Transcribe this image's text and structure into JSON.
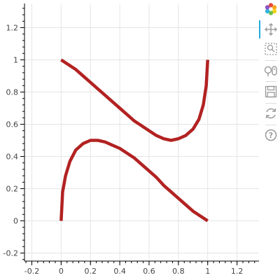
{
  "toolbar": {
    "items": [
      {
        "icon": "bokeh-logo-icon",
        "active": false
      },
      {
        "icon": "pan-icon",
        "active": true
      },
      {
        "icon": "box-zoom-icon",
        "active": false
      },
      {
        "icon": "wheel-zoom-icon",
        "active": false
      },
      {
        "icon": "save-icon",
        "active": false
      },
      {
        "icon": "reset-icon",
        "active": false
      },
      {
        "icon": "help-icon",
        "active": false
      }
    ]
  },
  "chart_data": {
    "type": "line",
    "title": "",
    "xlabel": "",
    "ylabel": "",
    "xlim": [
      -0.25,
      1.35
    ],
    "ylim": [
      -0.25,
      1.35
    ],
    "grid": true,
    "x_ticks": [
      -0.2,
      0,
      0.2,
      0.4,
      0.6,
      0.8,
      1,
      1.2
    ],
    "x_tick_labels": [
      "-0.2",
      "0",
      "0.2",
      "0.4",
      "0.6",
      "0.8",
      "1",
      "1.2"
    ],
    "y_ticks": [
      -0.2,
      0,
      0.2,
      0.4,
      0.6,
      0.8,
      1,
      1.2
    ],
    "y_tick_labels": [
      "-0.2",
      "0",
      "0.2",
      "0.4",
      "0.6",
      "0.8",
      "1",
      "1.2"
    ],
    "line_color": "#b22222",
    "series": [
      {
        "x": [
          0,
          0.01,
          0.03,
          0.06,
          0.1,
          0.15,
          0.2,
          0.25,
          0.3,
          0.35,
          0.4,
          0.45,
          0.5,
          0.55,
          0.6,
          0.65,
          0.7,
          0.75,
          0.8,
          0.85,
          0.9,
          0.95,
          1
        ],
        "y": [
          0,
          0.18,
          0.28,
          0.37,
          0.44,
          0.48,
          0.5,
          0.5,
          0.49,
          0.47,
          0.45,
          0.42,
          0.39,
          0.35,
          0.31,
          0.27,
          0.22,
          0.18,
          0.14,
          0.1,
          0.06,
          0.03,
          0
        ]
      },
      {
        "x": [
          0,
          0.05,
          0.1,
          0.15,
          0.2,
          0.25,
          0.3,
          0.35,
          0.4,
          0.45,
          0.5,
          0.55,
          0.6,
          0.65,
          0.7,
          0.75,
          0.8,
          0.85,
          0.9,
          0.94,
          0.97,
          0.99,
          1
        ],
        "y": [
          1,
          0.97,
          0.94,
          0.9,
          0.86,
          0.82,
          0.78,
          0.74,
          0.7,
          0.66,
          0.62,
          0.59,
          0.56,
          0.53,
          0.51,
          0.5,
          0.51,
          0.53,
          0.57,
          0.63,
          0.72,
          0.84,
          1
        ]
      }
    ]
  }
}
